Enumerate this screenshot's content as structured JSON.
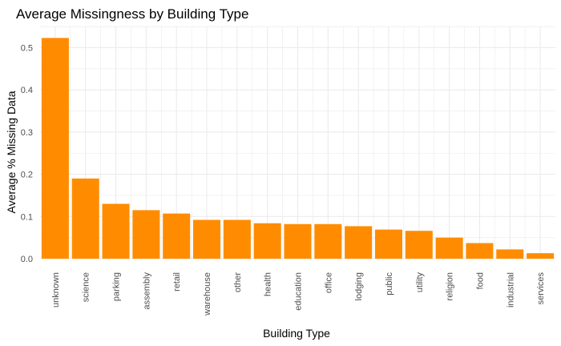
{
  "chart_data": {
    "type": "bar",
    "title": "Average Missingness by Building Type",
    "xlabel": "Building Type",
    "ylabel": "Average % Missing Data",
    "categories": [
      "unknown",
      "science",
      "parking",
      "assembly",
      "retail",
      "warehouse",
      "other",
      "health",
      "education",
      "office",
      "lodging",
      "public",
      "utility",
      "religion",
      "food",
      "industrial",
      "services"
    ],
    "values": [
      0.523,
      0.19,
      0.13,
      0.115,
      0.107,
      0.092,
      0.092,
      0.084,
      0.082,
      0.082,
      0.077,
      0.069,
      0.066,
      0.05,
      0.037,
      0.022,
      0.013
    ],
    "ylim": [
      0,
      0.55
    ],
    "yticks": [
      0.0,
      0.1,
      0.2,
      0.3,
      0.4,
      0.5
    ],
    "ytick_labels": [
      "0.0",
      "0.1",
      "0.2",
      "0.3",
      "0.4",
      "0.5"
    ],
    "grid": true,
    "bar_color": "#FF8C00",
    "grid_color": "#EBEBEB"
  }
}
